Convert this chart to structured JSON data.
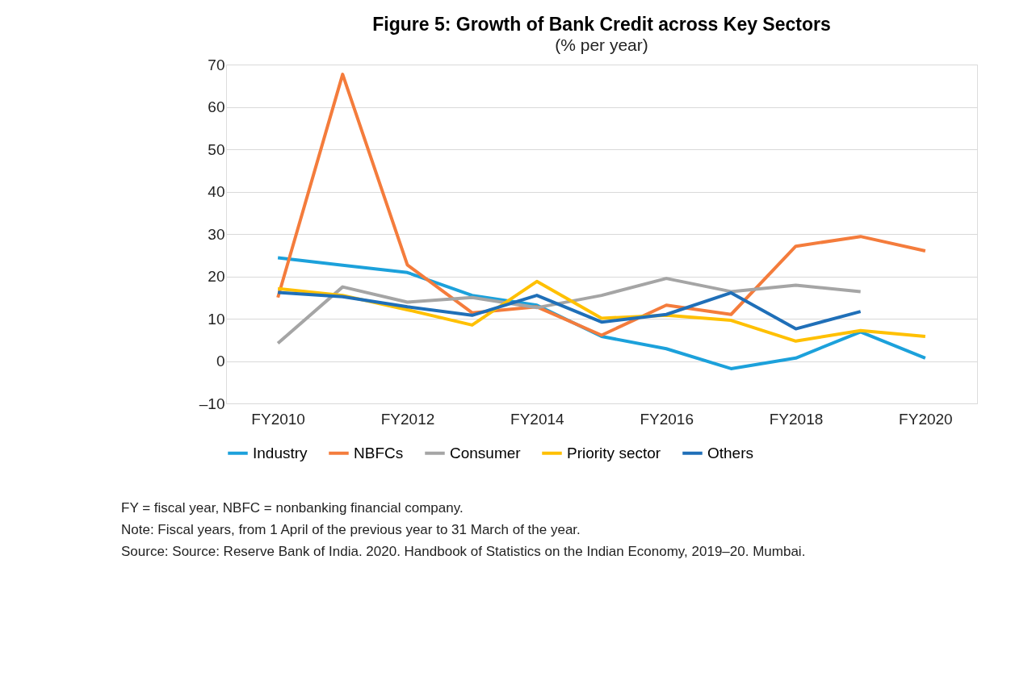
{
  "chart_data": {
    "type": "line",
    "title": "Figure 5: Growth of Bank Credit across Key Sectors",
    "subtitle": "(% per year)",
    "categories": [
      "FY2010",
      null,
      "FY2012",
      null,
      "FY2014",
      null,
      "FY2016",
      null,
      "FY2018",
      null,
      "FY2020"
    ],
    "series": [
      {
        "name": "Industry",
        "color": "#1ca1db",
        "values": [
          24.4,
          22.6,
          20.9,
          15.5,
          13.2,
          5.8,
          2.9,
          -1.8,
          0.7,
          6.9,
          0.7
        ]
      },
      {
        "name": "NBFCs",
        "color": "#f47c3c",
        "values": [
          15,
          67.7,
          22.7,
          11.4,
          12.8,
          6.1,
          13.2,
          11,
          27.1,
          29.4,
          26
        ]
      },
      {
        "name": "Consumer",
        "color": "#a5a5a5",
        "values": [
          4.2,
          17.5,
          13.9,
          15,
          12.6,
          15.5,
          19.5,
          16.4,
          17.9,
          16.4,
          null
        ]
      },
      {
        "name": "Priority sector",
        "color": "#ffc000",
        "values": [
          17.1,
          15.5,
          12.1,
          8.5,
          18.8,
          10.1,
          10.8,
          9.6,
          4.7,
          7.2,
          5.8
        ]
      },
      {
        "name": "Others",
        "color": "#1f6fb8",
        "values": [
          16.2,
          15.2,
          12.8,
          10.8,
          15.5,
          9.2,
          11,
          16.1,
          7.6,
          11.7,
          null
        ]
      }
    ],
    "ylim": [
      -10,
      70
    ],
    "yticks": [
      {
        "value": -10,
        "label": "–10"
      },
      0,
      10,
      20,
      30,
      40,
      50,
      60,
      70
    ],
    "grid": "y",
    "legend": "bottom",
    "marker": "none",
    "line_style": "solid",
    "annotations": [
      "FY = fiscal year, NBFC = nonbanking financial company.",
      "Note: Fiscal years, from 1 April of the previous year to 31 March of the year.",
      "Source: Source: Reserve Bank of India. 2020. Handbook of Statistics on the Indian Economy, 2019–20. Mumbai."
    ]
  }
}
